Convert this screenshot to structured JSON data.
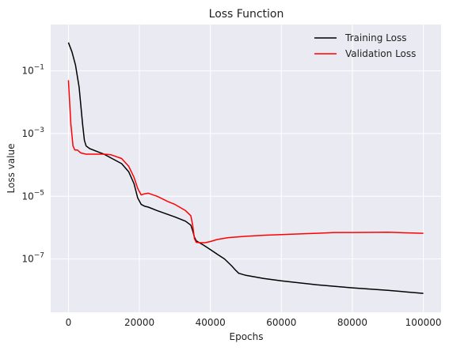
{
  "chart_data": {
    "type": "line",
    "title": "Loss Function",
    "xlabel": "Epochs",
    "ylabel": "Loss value",
    "xlim": [
      -5000,
      105000
    ],
    "ylim": [
      2e-09,
      3
    ],
    "yscale": "log",
    "grid": true,
    "legend": "top-right",
    "x_ticks": [
      0,
      20000,
      40000,
      60000,
      80000,
      100000
    ],
    "x_tick_labels": [
      "0",
      "20000",
      "40000",
      "60000",
      "80000",
      "100000"
    ],
    "y_ticks": [
      0.1,
      0.001,
      1e-05,
      1e-07
    ],
    "y_tick_labels": [
      {
        "base": "10",
        "exp": "−1"
      },
      {
        "base": "10",
        "exp": "−3"
      },
      {
        "base": "10",
        "exp": "−5"
      },
      {
        "base": "10",
        "exp": "−7"
      }
    ],
    "series": [
      {
        "name": "Training Loss",
        "color": "#000000",
        "x": [
          0,
          1000,
          2000,
          3000,
          4000,
          4500,
          5000,
          6000,
          10000,
          15000,
          17000,
          18500,
          19500,
          20500,
          21500,
          22500,
          25000,
          30000,
          33000,
          34500,
          35000,
          35500,
          36000,
          38000,
          40000,
          42000,
          44000,
          46000,
          47000,
          48000,
          50000,
          55000,
          60000,
          70000,
          80000,
          90000,
          100000
        ],
        "y": [
          0.8,
          0.4,
          0.15,
          0.03,
          0.002,
          0.0006,
          0.0004,
          0.00033,
          0.00022,
          0.00011,
          6e-05,
          2.5e-05,
          9e-06,
          5.5e-06,
          4.8e-06,
          4.5e-06,
          3.5e-06,
          2.2e-06,
          1.6e-06,
          1.2e-06,
          8e-07,
          5e-07,
          3.8e-07,
          2.8e-07,
          2e-07,
          1.4e-07,
          1e-07,
          6e-08,
          4.5e-08,
          3.5e-08,
          3e-08,
          2.4e-08,
          2e-08,
          1.5e-08,
          1.2e-08,
          1e-08,
          8e-09
        ]
      },
      {
        "name": "Validation Loss",
        "color": "#ff0000",
        "x": [
          0,
          700,
          1300,
          1800,
          2500,
          3500,
          5000,
          7000,
          10000,
          12000,
          15000,
          17000,
          18500,
          19500,
          20500,
          21500,
          22500,
          25000,
          28000,
          30000,
          33000,
          34500,
          35000,
          35500,
          36000,
          37000,
          38500,
          40000,
          42000,
          45000,
          50000,
          55000,
          60000,
          70000,
          75000,
          80000,
          90000,
          100000
        ],
        "y": [
          0.05,
          0.002,
          0.0004,
          0.0003,
          0.0003,
          0.00024,
          0.00022,
          0.00022,
          0.00022,
          0.00021,
          0.00016,
          9e-05,
          4e-05,
          1.8e-05,
          1.1e-05,
          1.2e-05,
          1.25e-05,
          1e-05,
          6.8e-06,
          5.5e-06,
          3.5e-06,
          2.4e-06,
          1.2e-06,
          4.5e-07,
          3.4e-07,
          3.3e-07,
          3.3e-07,
          3.6e-07,
          4.2e-07,
          4.8e-07,
          5.3e-07,
          5.7e-07,
          6e-07,
          6.6e-07,
          7e-07,
          7e-07,
          7.1e-07,
          6.6e-07
        ]
      }
    ]
  }
}
